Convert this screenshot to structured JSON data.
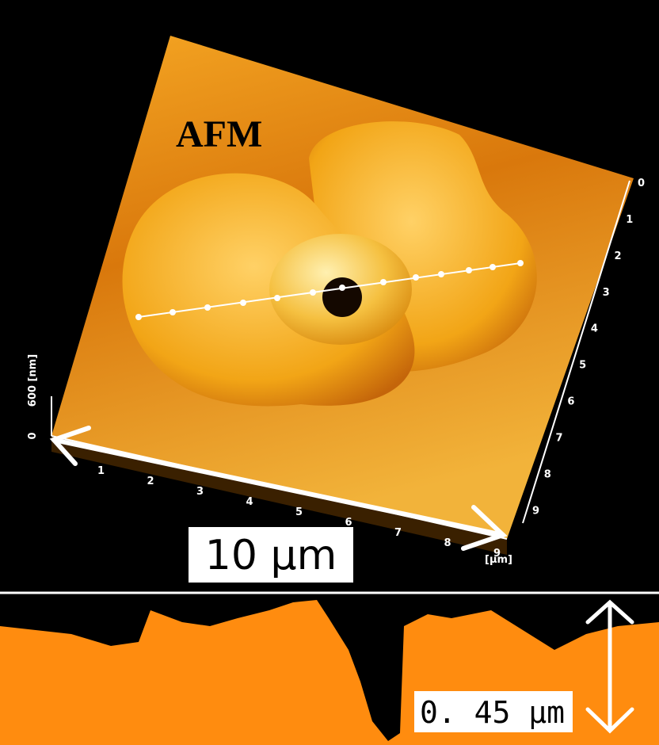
{
  "image": {
    "title": "AFM",
    "scale_label": "10 µm",
    "height_label": "0. 45 µm",
    "z_axis": {
      "label": "600 [nm]",
      "zero": "0"
    },
    "x_axis": {
      "ticks": [
        "1",
        "2",
        "3",
        "4",
        "5",
        "6",
        "7",
        "8",
        "9"
      ]
    },
    "y_axis": {
      "ticks": [
        "0",
        "1",
        "2",
        "3",
        "4",
        "5",
        "6",
        "7",
        "8",
        "9"
      ],
      "unit": "[µm]"
    }
  }
}
